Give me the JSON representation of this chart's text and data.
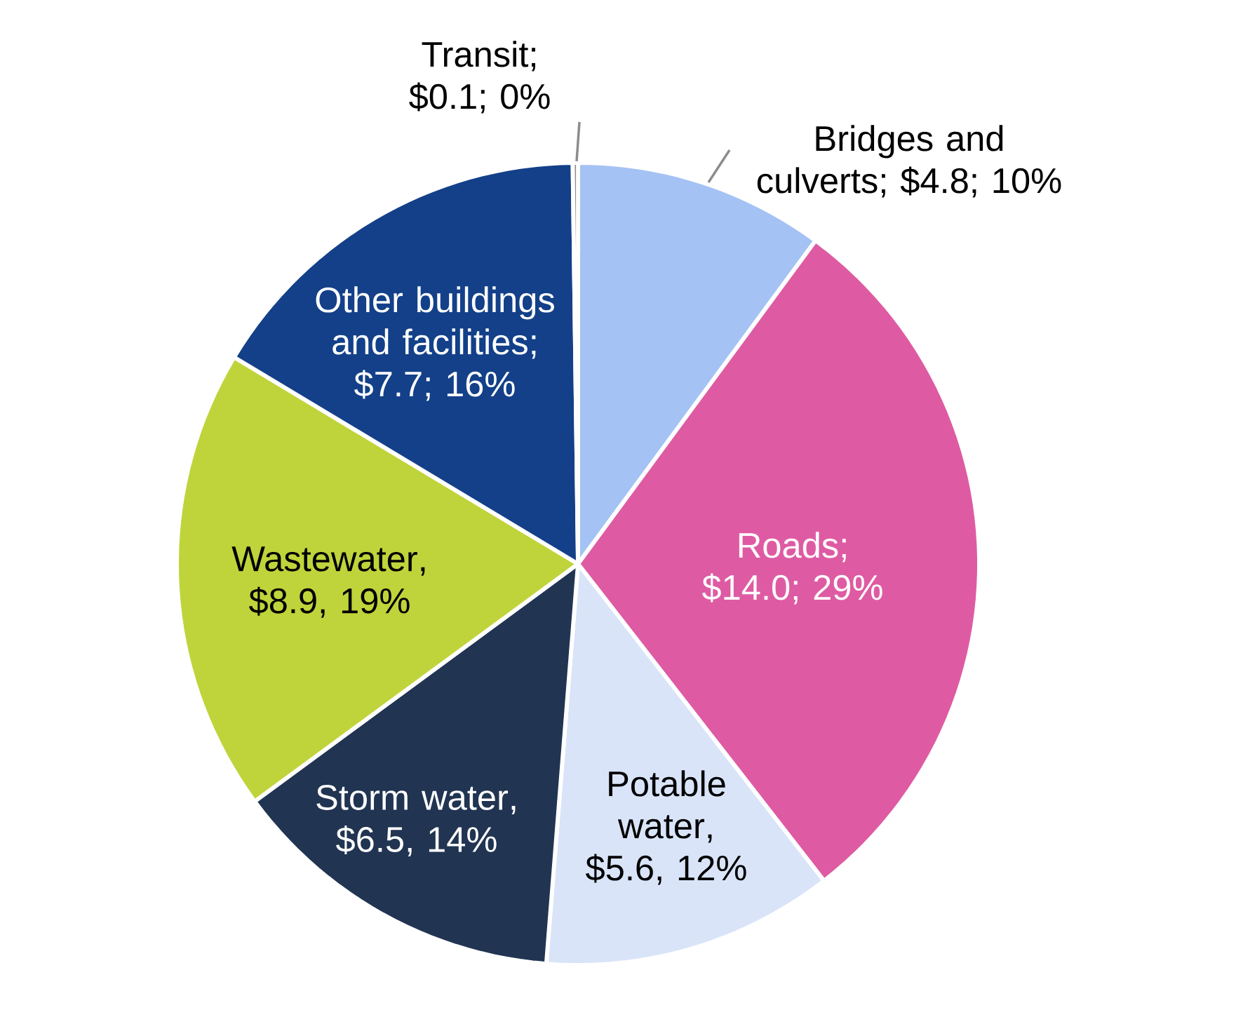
{
  "chart_data": {
    "type": "pie",
    "categories": [
      "Bridges and culverts",
      "Roads",
      "Potable water",
      "Storm water",
      "Wastewater",
      "Other buildings and facilities",
      "Transit"
    ],
    "values": [
      4.8,
      14.0,
      5.6,
      6.5,
      8.9,
      7.7,
      0.1
    ],
    "value_labels": [
      "; $4.8; 10%",
      "; $14.0; 29%",
      ", $5.6, 12%",
      ", $6.5, 14%",
      ", $8.9, 19%",
      "; $7.7; 16%",
      "; $0.1; 0%"
    ],
    "colors": [
      "#a4c2f4",
      "#de5ba3",
      "#d9e4f8",
      "#213452",
      "#bfd43a",
      "#134089",
      "#8c8c8c"
    ]
  }
}
